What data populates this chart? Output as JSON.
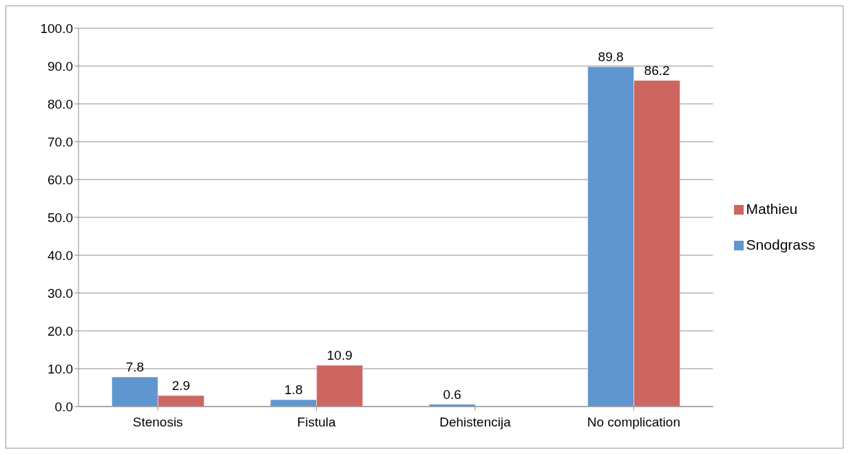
{
  "chart_data": {
    "type": "bar",
    "categories": [
      "Stenosis",
      "Fistula",
      "Dehistencija",
      "No complication"
    ],
    "series": [
      {
        "name": "Snodgrass",
        "color": "#6096cf",
        "values": [
          7.8,
          1.8,
          0.6,
          89.8
        ]
      },
      {
        "name": "Mathieu",
        "color": "#cd6660",
        "values": [
          2.9,
          10.9,
          null,
          86.2
        ]
      }
    ],
    "ylim": [
      0,
      100
    ],
    "yticks": [
      {
        "value": 0,
        "label": "0.0"
      },
      {
        "value": 10,
        "label": "10.0"
      },
      {
        "value": 20,
        "label": "20.0"
      },
      {
        "value": 30,
        "label": "30.0"
      },
      {
        "value": 40,
        "label": "40.0"
      },
      {
        "value": 50,
        "label": "50.0"
      },
      {
        "value": 60,
        "label": "60.0"
      },
      {
        "value": 70,
        "label": "70.0"
      },
      {
        "value": 80,
        "label": "80.0"
      },
      {
        "value": 90,
        "label": "90.0"
      },
      {
        "value": 100,
        "label": "100.0"
      }
    ],
    "grid": "y",
    "legend": "right",
    "data_labels": true
  }
}
